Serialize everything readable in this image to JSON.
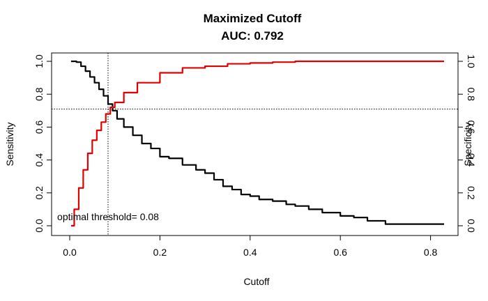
{
  "chart_data": {
    "type": "line",
    "title": "Maximized Cutoff",
    "subtitle": "AUC:  0.792",
    "xlabel": "Cutoff",
    "ylabel": "Sensitivity",
    "y2label": "Specificity",
    "xlim": [
      0.0,
      0.83
    ],
    "ylim": [
      0.0,
      1.0
    ],
    "x_ticks": [
      "0.0",
      "0.2",
      "0.4",
      "0.6",
      "0.8"
    ],
    "y_ticks": [
      "0.0",
      "0.2",
      "0.4",
      "0.6",
      "0.8",
      "1.0"
    ],
    "y2_ticks": [
      "0.0",
      "0.2",
      "0.4",
      "0.6",
      "0.8",
      "1.0"
    ],
    "colors": {
      "sensitivity": "#000000",
      "specificity": "#e00000"
    },
    "series": [
      {
        "name": "Sensitivity",
        "x": [
          0.003,
          0.015,
          0.025,
          0.035,
          0.045,
          0.055,
          0.065,
          0.075,
          0.085,
          0.095,
          0.105,
          0.12,
          0.14,
          0.16,
          0.18,
          0.2,
          0.22,
          0.25,
          0.28,
          0.3,
          0.32,
          0.34,
          0.36,
          0.38,
          0.4,
          0.42,
          0.45,
          0.48,
          0.5,
          0.53,
          0.56,
          0.6,
          0.63,
          0.66,
          0.7,
          0.75,
          0.8,
          0.83
        ],
        "values": [
          1.0,
          0.995,
          0.97,
          0.94,
          0.905,
          0.87,
          0.83,
          0.79,
          0.74,
          0.7,
          0.65,
          0.6,
          0.55,
          0.5,
          0.47,
          0.42,
          0.41,
          0.37,
          0.34,
          0.32,
          0.28,
          0.24,
          0.22,
          0.19,
          0.18,
          0.16,
          0.15,
          0.13,
          0.12,
          0.1,
          0.08,
          0.06,
          0.05,
          0.03,
          0.01,
          0.01,
          0.01,
          0.01
        ]
      },
      {
        "name": "Specificity",
        "x": [
          0.003,
          0.01,
          0.02,
          0.03,
          0.04,
          0.05,
          0.06,
          0.07,
          0.08,
          0.09,
          0.1,
          0.12,
          0.15,
          0.2,
          0.25,
          0.3,
          0.35,
          0.4,
          0.45,
          0.5,
          0.6,
          0.7,
          0.83
        ],
        "values": [
          0.0,
          0.1,
          0.23,
          0.34,
          0.44,
          0.52,
          0.58,
          0.63,
          0.68,
          0.72,
          0.75,
          0.81,
          0.87,
          0.93,
          0.96,
          0.97,
          0.985,
          0.99,
          0.995,
          1.0,
          1.0,
          1.0,
          1.0
        ]
      }
    ],
    "optimal_threshold": 0.085,
    "optimal_value": 0.71,
    "annotation": "optimal threshold= 0.08"
  }
}
